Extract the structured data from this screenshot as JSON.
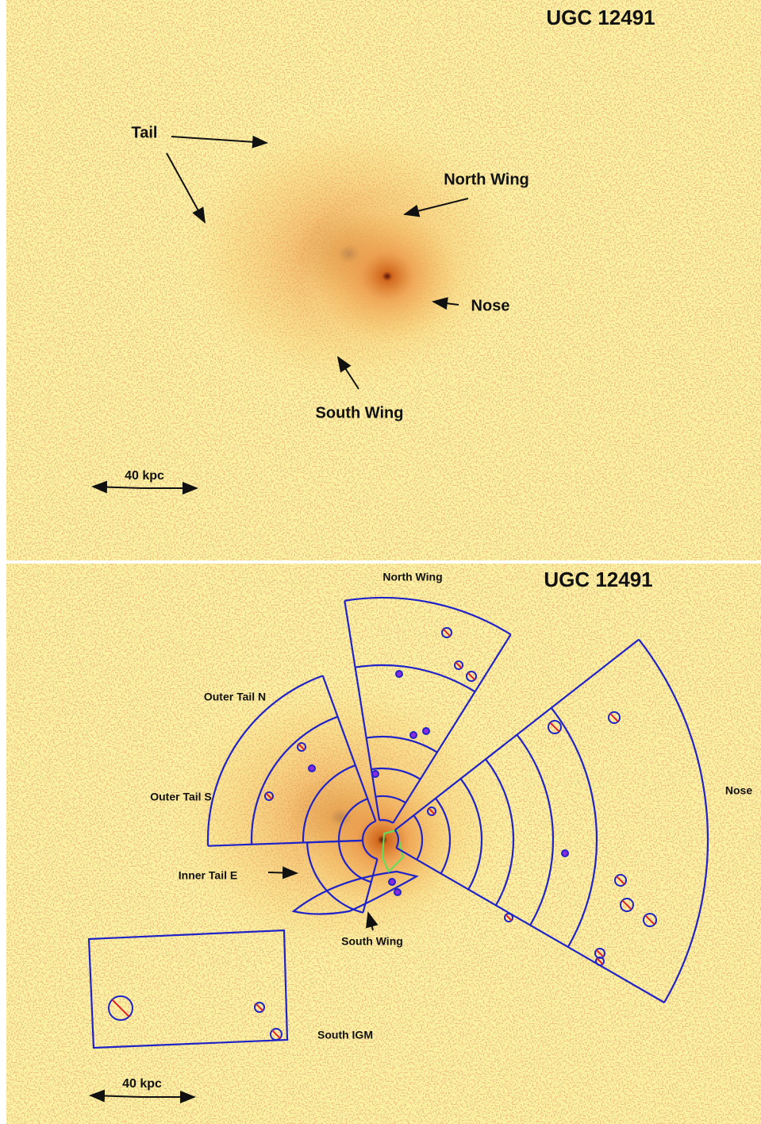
{
  "top_panel": {
    "title": "UGC 12491",
    "labels": {
      "tail": "Tail",
      "north_wing": "North Wing",
      "nose": "Nose",
      "south_wing": "South Wing"
    },
    "scale_bar": "40 kpc"
  },
  "bottom_panel": {
    "title": "UGC 12491",
    "labels": {
      "north_wing": "North Wing",
      "outer_tail_n": "Outer Tail N",
      "outer_tail_s": "Outer Tail S",
      "inner_tail_e": "Inner Tail E",
      "south_wing": "South Wing",
      "nose": "Nose",
      "south_igm": "South IGM"
    },
    "scale_bar": "40 kpc"
  }
}
